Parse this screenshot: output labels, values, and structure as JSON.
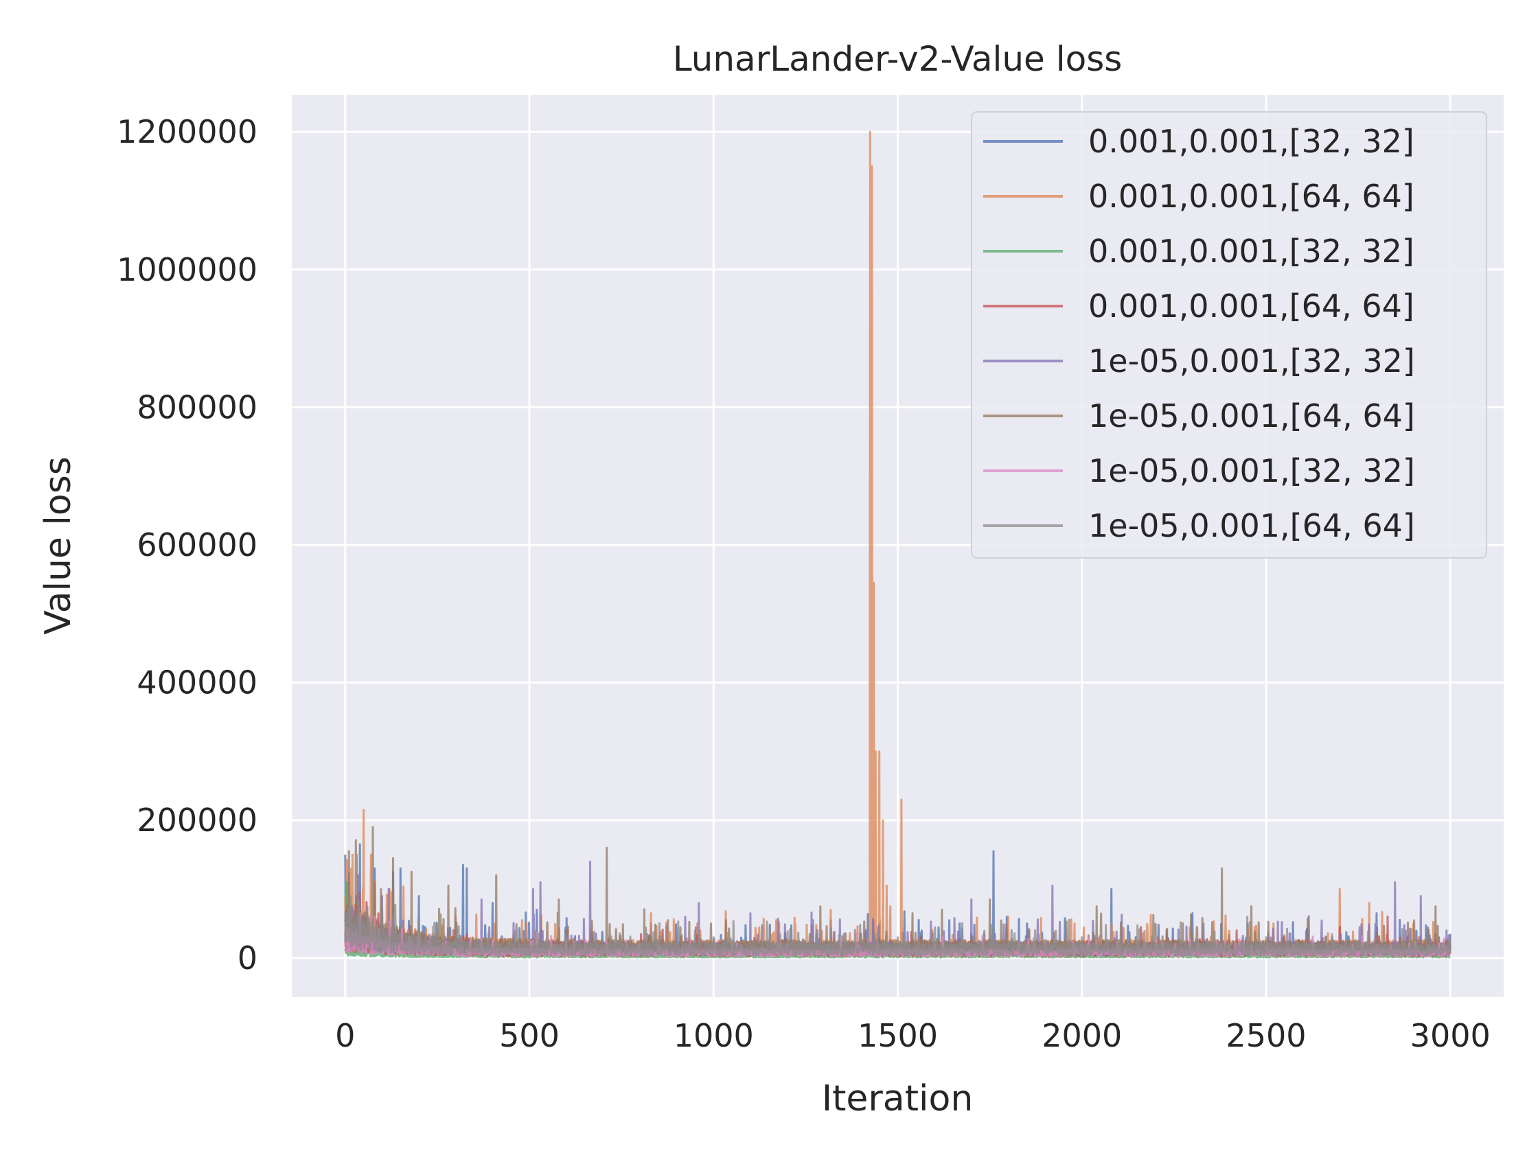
{
  "chart_data": {
    "type": "line",
    "title": "LunarLander-v2-Value loss",
    "xlabel": "Iteration",
    "ylabel": "Value loss",
    "xlim": [
      -145,
      3145
    ],
    "ylim": [
      -57000,
      1254000
    ],
    "xticks": [
      0,
      500,
      1000,
      1500,
      2000,
      2500,
      3000
    ],
    "yticks": [
      0,
      200000,
      400000,
      600000,
      800000,
      1000000,
      1200000
    ],
    "xtick_labels": [
      "0",
      "500",
      "1000",
      "1500",
      "2000",
      "2500",
      "3000"
    ],
    "ytick_labels": [
      "0",
      "200000",
      "400000",
      "600000",
      "800000",
      "1000000",
      "1200000"
    ],
    "grid": true,
    "legend_position": "top-right",
    "series": [
      {
        "name": "0.001,0.001,[32, 32]",
        "color": "#4c72b0",
        "base": 16000,
        "peaks": [
          [
            0,
            150000
          ],
          [
            40,
            165000
          ],
          [
            80,
            130000
          ],
          [
            130,
            125000
          ],
          [
            150,
            130000
          ],
          [
            200,
            90000
          ],
          [
            320,
            135000
          ],
          [
            330,
            130000
          ],
          [
            400,
            80000
          ],
          [
            520,
            70000
          ],
          [
            830,
            50000
          ],
          [
            1450,
            50000
          ],
          [
            1640,
            55000
          ],
          [
            1760,
            155000
          ],
          [
            2080,
            100000
          ],
          [
            2300,
            65000
          ],
          [
            2450,
            50000
          ],
          [
            2800,
            65000
          ],
          [
            3000,
            35000
          ]
        ]
      },
      {
        "name": "0.001,0.001,[64, 64]",
        "color": "#dd8452",
        "base": 18000,
        "peaks": [
          [
            20,
            150000
          ],
          [
            50,
            215000
          ],
          [
            70,
            150000
          ],
          [
            120,
            100000
          ],
          [
            300,
            60000
          ],
          [
            480,
            55000
          ],
          [
            830,
            65000
          ],
          [
            1170,
            55000
          ],
          [
            1425,
            1200000
          ],
          [
            1430,
            1150000
          ],
          [
            1435,
            545000
          ],
          [
            1440,
            300000
          ],
          [
            1450,
            300000
          ],
          [
            1460,
            200000
          ],
          [
            1470,
            105000
          ],
          [
            1480,
            75000
          ],
          [
            1510,
            230000
          ],
          [
            1800,
            60000
          ],
          [
            1980,
            50000
          ],
          [
            2520,
            50000
          ],
          [
            2700,
            100000
          ],
          [
            2780,
            80000
          ],
          [
            2900,
            50000
          ]
        ]
      },
      {
        "name": "0.001,0.001,[32, 32]",
        "color": "#55a868",
        "base": 3000,
        "peaks": [
          [
            5,
            110000
          ],
          [
            10,
            60000
          ],
          [
            30,
            30000
          ],
          [
            60,
            20000
          ],
          [
            100,
            15000
          ],
          [
            200,
            9000
          ]
        ]
      },
      {
        "name": "0.001,0.001,[64, 64]",
        "color": "#c44e52",
        "base": 10000,
        "peaks": [
          [
            30,
            90000
          ],
          [
            100,
            60000
          ],
          [
            600,
            40000
          ],
          [
            1400,
            35000
          ],
          [
            1700,
            35000
          ],
          [
            2160,
            45000
          ],
          [
            2230,
            40000
          ],
          [
            2420,
            40000
          ],
          [
            2700,
            45000
          ],
          [
            2830,
            60000
          ],
          [
            2960,
            35000
          ]
        ]
      },
      {
        "name": "1e-05,0.001,[32, 32]",
        "color": "#8172b3",
        "base": 16000,
        "peaks": [
          [
            35,
            120000
          ],
          [
            100,
            90000
          ],
          [
            370,
            85000
          ],
          [
            510,
            100000
          ],
          [
            530,
            110000
          ],
          [
            665,
            140000
          ],
          [
            960,
            80000
          ],
          [
            1100,
            65000
          ],
          [
            1270,
            55000
          ],
          [
            1700,
            85000
          ],
          [
            1920,
            105000
          ],
          [
            2330,
            50000
          ],
          [
            2850,
            110000
          ],
          [
            2920,
            90000
          ],
          [
            2990,
            40000
          ]
        ]
      },
      {
        "name": "1e-05,0.001,[64, 64]",
        "color": "#937860",
        "base": 18000,
        "peaks": [
          [
            10,
            155000
          ],
          [
            75,
            190000
          ],
          [
            130,
            145000
          ],
          [
            180,
            125000
          ],
          [
            280,
            105000
          ],
          [
            410,
            120000
          ],
          [
            580,
            85000
          ],
          [
            710,
            160000
          ],
          [
            1290,
            75000
          ],
          [
            1540,
            65000
          ],
          [
            1620,
            70000
          ],
          [
            1750,
            85000
          ],
          [
            2040,
            75000
          ],
          [
            2380,
            130000
          ],
          [
            2460,
            75000
          ],
          [
            2960,
            75000
          ]
        ]
      },
      {
        "name": "1e-05,0.001,[32, 32]",
        "color": "#da8bc3",
        "base": 9000,
        "peaks": [
          [
            40,
            65000
          ],
          [
            80,
            60000
          ],
          [
            120,
            55000
          ],
          [
            200,
            35000
          ],
          [
            400,
            25000
          ],
          [
            800,
            20000
          ],
          [
            1200,
            20000
          ],
          [
            1600,
            20000
          ],
          [
            2000,
            18000
          ],
          [
            2400,
            18000
          ],
          [
            2800,
            18000
          ]
        ]
      },
      {
        "name": "1e-05,0.001,[64, 64]",
        "color": "#8c8c8c",
        "base": 15000,
        "peaks": [
          [
            15,
            90000
          ],
          [
            60,
            75000
          ],
          [
            130,
            60000
          ],
          [
            250,
            50000
          ],
          [
            600,
            35000
          ],
          [
            1000,
            30000
          ],
          [
            1500,
            30000
          ],
          [
            2000,
            30000
          ],
          [
            2500,
            30000
          ],
          [
            3000,
            30000
          ]
        ]
      }
    ]
  }
}
